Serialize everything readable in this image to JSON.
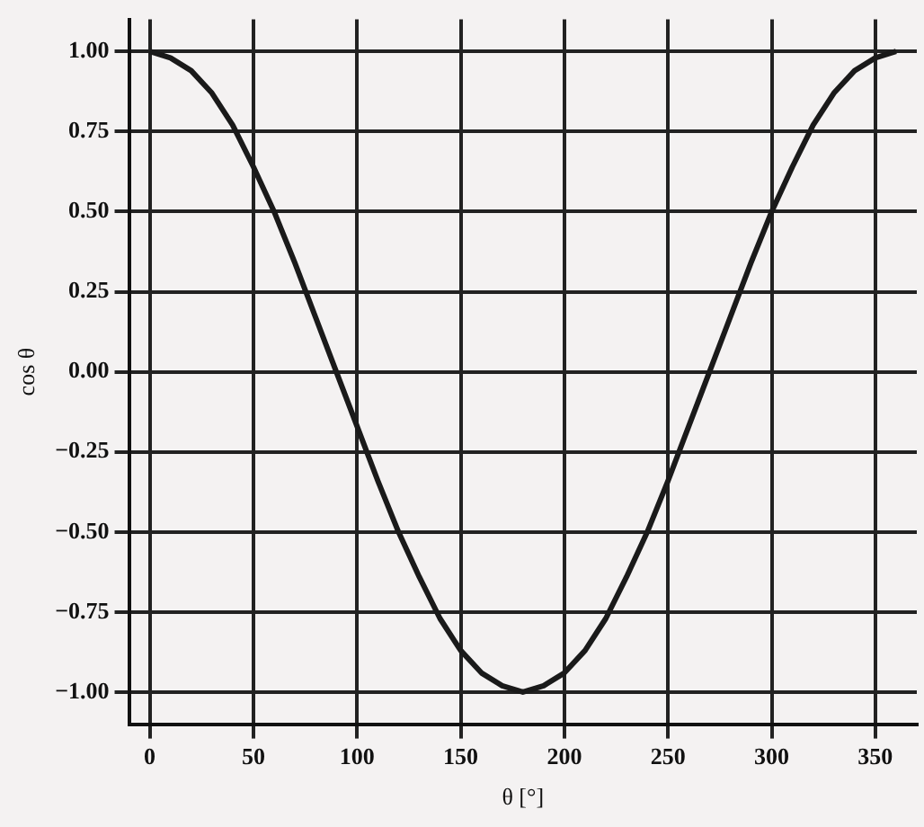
{
  "chart_data": {
    "type": "line",
    "xlabel": "θ [°]",
    "ylabel": "cos θ",
    "xlim": [
      -10,
      370
    ],
    "xticks": [
      0,
      50,
      100,
      150,
      200,
      250,
      300,
      350
    ],
    "ylim": [
      -1.1,
      1.1
    ],
    "yticks": [
      {
        "value": 1,
        "label": "1.00"
      },
      {
        "value": 0.75,
        "label": "0.75"
      },
      {
        "value": 0.5,
        "label": "0.50"
      },
      {
        "value": 0.25,
        "label": "0.25"
      },
      {
        "value": 0,
        "label": "0.00"
      },
      {
        "value": -0.25,
        "label": "−0.25"
      },
      {
        "value": -0.5,
        "label": "−0.50"
      },
      {
        "value": -0.75,
        "label": "−0.75"
      },
      {
        "value": -1,
        "label": "−1.00"
      }
    ],
    "grid": true,
    "marker": "none",
    "line_style": "solid",
    "x": [
      0,
      10,
      20,
      30,
      40,
      50,
      60,
      70,
      80,
      90,
      100,
      110,
      120,
      130,
      140,
      150,
      160,
      170,
      180,
      190,
      200,
      210,
      220,
      230,
      240,
      250,
      260,
      270,
      280,
      290,
      300,
      310,
      320,
      330,
      340,
      350,
      360
    ],
    "series": [
      {
        "color": "#1a1a1a",
        "values": [
          1,
          0.98,
          0.94,
          0.87,
          0.77,
          0.64,
          0.5,
          0.34,
          0.17,
          0,
          -0.17,
          -0.34,
          -0.5,
          -0.64,
          -0.77,
          -0.87,
          -0.94,
          -0.98,
          -1,
          -0.98,
          -0.94,
          -0.87,
          -0.77,
          -0.64,
          -0.5,
          -0.34,
          -0.17,
          0,
          0.17,
          0.34,
          0.5,
          0.64,
          0.77,
          0.87,
          0.94,
          0.98,
          1
        ]
      }
    ]
  }
}
